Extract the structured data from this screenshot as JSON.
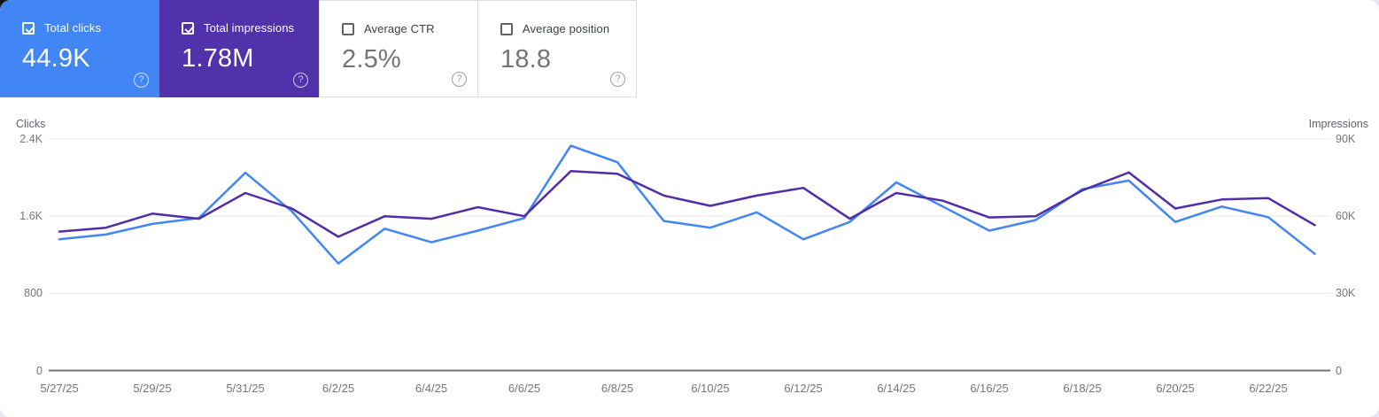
{
  "cards": [
    {
      "id": "total-clicks",
      "label": "Total clicks",
      "value": "44.9K",
      "checked": true,
      "bg": "#4285f4",
      "selected": true
    },
    {
      "id": "total-impressions",
      "label": "Total impressions",
      "value": "1.78M",
      "checked": true,
      "bg": "#5132ab",
      "selected": true
    },
    {
      "id": "average-ctr",
      "label": "Average CTR",
      "value": "2.5%",
      "checked": false,
      "bg": "#ffffff",
      "selected": false
    },
    {
      "id": "average-position",
      "label": "Average position",
      "value": "18.8",
      "checked": false,
      "bg": "#ffffff",
      "selected": false
    }
  ],
  "help_icon_glyph": "?",
  "value_color_unselected": "#757575",
  "chart_data": {
    "type": "line",
    "x": [
      "5/27/25",
      "5/28/25",
      "5/29/25",
      "5/30/25",
      "5/31/25",
      "6/1/25",
      "6/2/25",
      "6/3/25",
      "6/4/25",
      "6/5/25",
      "6/6/25",
      "6/7/25",
      "6/8/25",
      "6/9/25",
      "6/10/25",
      "6/11/25",
      "6/12/25",
      "6/13/25",
      "6/14/25",
      "6/15/25",
      "6/16/25",
      "6/17/25",
      "6/18/25",
      "6/19/25",
      "6/20/25",
      "6/21/25",
      "6/22/25",
      "6/23/25"
    ],
    "x_tick_labels": [
      "5/27/25",
      "5/29/25",
      "5/31/25",
      "6/2/25",
      "6/4/25",
      "6/6/25",
      "6/8/25",
      "6/10/25",
      "6/12/25",
      "6/14/25",
      "6/16/25",
      "6/18/25",
      "6/20/25",
      "6/22/25"
    ],
    "series": [
      {
        "name": "Clicks",
        "axis": "left",
        "color": "#4285f4",
        "values": [
          1360,
          1410,
          1520,
          1580,
          2050,
          1650,
          1110,
          1470,
          1330,
          1450,
          1580,
          2330,
          2160,
          1550,
          1480,
          1640,
          1360,
          1540,
          1950,
          1700,
          1450,
          1560,
          1880,
          1970,
          1540,
          1700,
          1590,
          1210
        ]
      },
      {
        "name": "Impressions",
        "axis": "right",
        "color": "#512da8",
        "values": [
          54000,
          55500,
          61000,
          59000,
          69000,
          63000,
          52000,
          60000,
          59000,
          63500,
          60000,
          77500,
          76500,
          68000,
          64000,
          68000,
          71000,
          59000,
          69000,
          66000,
          59500,
          60000,
          70000,
          77000,
          63000,
          66500,
          67000,
          56500
        ]
      }
    ],
    "left_axis": {
      "title": "Clicks",
      "ticks": [
        "2.4K",
        "1.6K",
        "800",
        "0"
      ],
      "range": [
        0,
        2400
      ]
    },
    "right_axis": {
      "title": "Impressions",
      "ticks": [
        "90K",
        "60K",
        "30K",
        "0"
      ],
      "range": [
        0,
        90000
      ]
    },
    "grid": true,
    "legend": "none",
    "grid_color": "#e8eaed",
    "baseline_color": "#757575"
  }
}
